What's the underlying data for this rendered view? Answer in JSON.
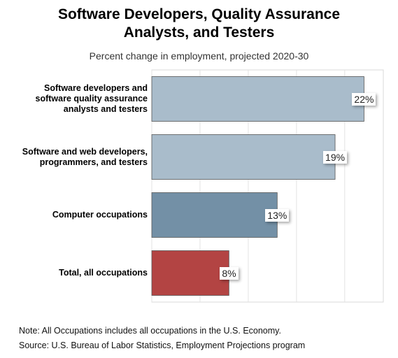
{
  "chart_data": {
    "type": "bar",
    "orientation": "horizontal",
    "title": "Software Developers, Quality Assurance Analysts, and Testers",
    "subtitle": "Percent change in employment, projected 2020-30",
    "categories": [
      "Software developers and software quality assurance analysts and testers",
      "Software and web developers, programmers, and testers",
      "Computer occupations",
      "Total, all occupations"
    ],
    "values": [
      22,
      19,
      13,
      8
    ],
    "value_labels": [
      "22%",
      "19%",
      "13%",
      "8%"
    ],
    "colors": [
      "#a9bccb",
      "#a9bccb",
      "#7390a6",
      "#b34443"
    ],
    "xlim": [
      0,
      24
    ],
    "grid": true
  },
  "notes": {
    "note": "Note: All Occupations includes all occupations in the U.S. Economy.",
    "source": "Source: U.S. Bureau of Labor Statistics, Employment Projections program"
  }
}
